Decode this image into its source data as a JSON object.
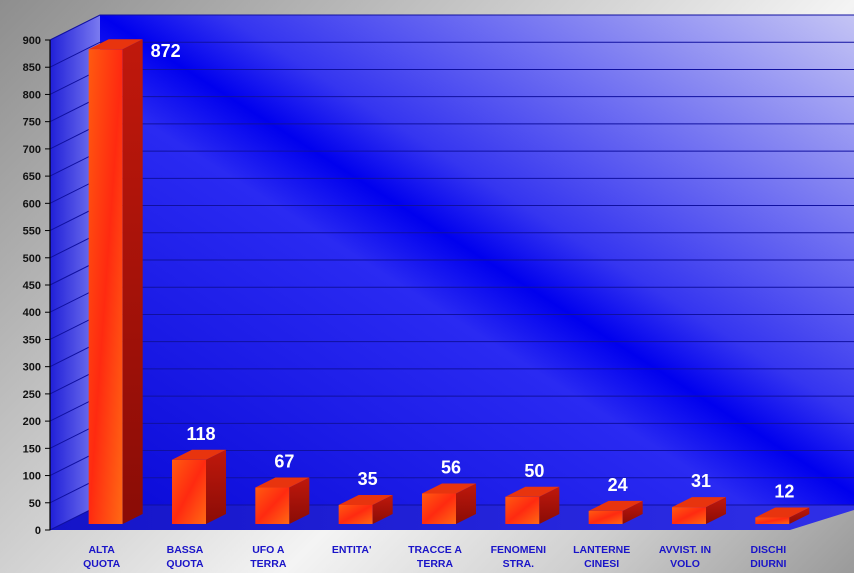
{
  "chart_data": {
    "type": "bar",
    "categories": [
      [
        "ALTA",
        "QUOTA"
      ],
      [
        "BASSA",
        "QUOTA"
      ],
      [
        "UFO A",
        "TERRA"
      ],
      [
        "ENTITA'"
      ],
      [
        "TRACCE A",
        "TERRA"
      ],
      [
        "FENOMENI",
        "STRA."
      ],
      [
        "LANTERNE",
        "CINESI"
      ],
      [
        "AVVIST. IN",
        "VOLO"
      ],
      [
        "DISCHI",
        "DIURNI"
      ]
    ],
    "values": [
      872,
      118,
      67,
      35,
      56,
      50,
      24,
      31,
      12
    ],
    "ylim": [
      0,
      900
    ],
    "yticks": [
      0,
      50,
      100,
      150,
      200,
      250,
      300,
      350,
      400,
      450,
      500,
      550,
      600,
      650,
      700,
      750,
      800,
      850,
      900
    ],
    "style": "3d",
    "grid": true,
    "legend": "none",
    "colors": {
      "bar_front": "#ff3a12",
      "bar_top": "#e8340e",
      "bar_side": "#b0140a",
      "plot_back": "#1a1af0",
      "grid": "#1010a0",
      "labels": "#1a14c8",
      "data_labels": "#ffffff"
    }
  }
}
